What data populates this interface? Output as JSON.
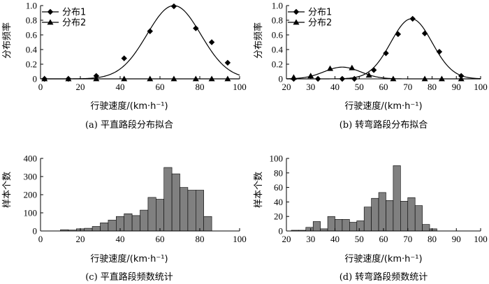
{
  "chart_data": [
    {
      "id": "a",
      "type": "line",
      "caption": "(a) 平直路段分布拟合",
      "xlabel": "行驶速度/(km·h⁻¹)",
      "ylabel": "分布频率",
      "xlim": [
        0,
        100
      ],
      "ylim": [
        0,
        1.0
      ],
      "xticks": [
        0,
        20,
        40,
        60,
        80,
        100
      ],
      "yticks": [
        0,
        0.2,
        0.4,
        0.6,
        0.8,
        1.0
      ],
      "ytick_labels": [
        "0",
        "0.2",
        "0.4",
        "0.6",
        "0.8",
        "1.0"
      ],
      "legend_position": "top-left",
      "series": [
        {
          "name": "分布1",
          "marker": "diamond",
          "x": [
            2,
            14,
            28,
            42,
            55,
            67,
            78,
            86,
            94
          ],
          "y": [
            0.0,
            0.0,
            0.04,
            0.28,
            0.65,
            0.99,
            0.69,
            0.5,
            0.22
          ],
          "curve": {
            "kind": "gaussian",
            "amplitude": 1.0,
            "mean": 67,
            "sigma": 13.5
          }
        },
        {
          "name": "分布2",
          "marker": "triangle",
          "x": [
            2,
            14,
            28,
            42,
            55,
            67,
            78,
            86,
            94
          ],
          "y": [
            0,
            0,
            0,
            0,
            0,
            0,
            0,
            0,
            0
          ],
          "curve": {
            "kind": "flat",
            "value": 0
          }
        }
      ]
    },
    {
      "id": "b",
      "type": "line",
      "caption": "(b) 转弯路段分布拟合",
      "xlabel": "行驶速度/(km·h⁻¹)",
      "ylabel": "分布频率",
      "xlim": [
        20,
        100
      ],
      "ylim": [
        0,
        1.0
      ],
      "xticks": [
        20,
        30,
        40,
        50,
        60,
        70,
        80,
        90,
        100
      ],
      "yticks": [
        0,
        0.2,
        0.4,
        0.6,
        0.8,
        1.0
      ],
      "ytick_labels": [
        "0",
        "0.2",
        "0.4",
        "0.6",
        "0.8",
        "1.0"
      ],
      "legend_position": "top-left",
      "series": [
        {
          "name": "分布1",
          "marker": "diamond",
          "x": [
            23,
            33,
            43,
            48,
            56,
            61,
            66,
            72,
            77,
            83,
            92
          ],
          "y": [
            0.0,
            0.0,
            0.0,
            0.0,
            0.12,
            0.35,
            0.61,
            0.82,
            0.62,
            0.37,
            0.04
          ],
          "curve": {
            "kind": "gaussian",
            "amplitude": 0.82,
            "mean": 71.5,
            "sigma": 8.5
          }
        },
        {
          "name": "分布2",
          "marker": "triangle",
          "x": [
            23,
            30,
            38,
            47,
            54,
            64,
            77,
            84,
            92
          ],
          "y": [
            0.02,
            0.04,
            0.14,
            0.15,
            0.05,
            0.0,
            0.0,
            0.0,
            0.0
          ],
          "curve": {
            "kind": "gaussian",
            "amplitude": 0.16,
            "mean": 43,
            "sigma": 7.5
          }
        }
      ]
    },
    {
      "id": "c",
      "type": "bar",
      "caption": "(c) 平直路段频数统计",
      "xlabel": "行驶速度/(km·h⁻¹)",
      "ylabel": "样本个数",
      "xlim": [
        0,
        100
      ],
      "ylim": [
        0,
        400
      ],
      "xticks": [
        0,
        20,
        40,
        60,
        80,
        100
      ],
      "yticks": [
        0,
        100,
        200,
        300,
        400
      ],
      "bins_start": 10,
      "bin_width": 4,
      "values": [
        7,
        5,
        12,
        15,
        25,
        45,
        60,
        80,
        95,
        85,
        115,
        185,
        175,
        350,
        315,
        240,
        225,
        225,
        80
      ]
    },
    {
      "id": "d",
      "type": "bar",
      "caption": "(d) 转弯路段频数统计",
      "xlabel": "行驶速度/(km·h⁻¹)",
      "ylabel": "样本个数",
      "xlim": [
        20,
        100
      ],
      "ylim": [
        0,
        100
      ],
      "xticks": [
        20,
        30,
        40,
        50,
        60,
        70,
        80,
        90,
        100
      ],
      "yticks": [
        0,
        20,
        40,
        60,
        80,
        100
      ],
      "bins_start": 22,
      "bin_width": 3,
      "values": [
        1,
        1,
        5,
        13,
        3,
        20,
        16,
        16,
        12,
        14,
        33,
        45,
        53,
        42,
        90,
        41,
        46,
        35,
        9,
        3
      ]
    }
  ]
}
